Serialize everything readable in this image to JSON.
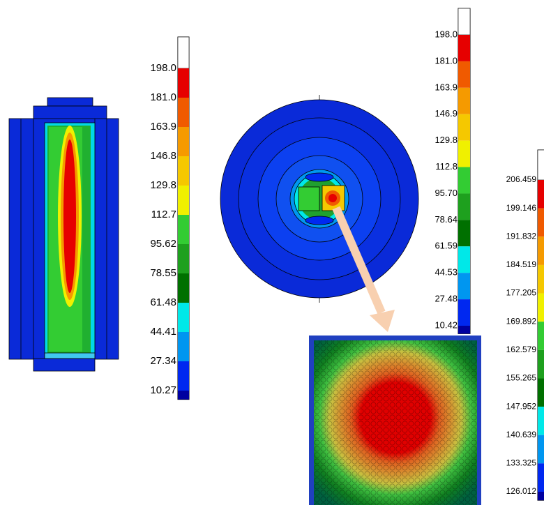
{
  "legend_colors": [
    "#ffffff",
    "#e60000",
    "#f05a00",
    "#f59a00",
    "#f5c800",
    "#f0f000",
    "#33cc33",
    "#1ea01e",
    "#007000",
    "#00e8e8",
    "#0096f0",
    "#0028f0",
    "#0000a0"
  ],
  "legends": [
    {
      "labels": [
        "198.0",
        "181.0",
        "163.9",
        "146.8",
        "129.8",
        "112.7",
        "95.62",
        "78.55",
        "61.48",
        "44.41",
        "27.34",
        "10.27"
      ]
    },
    {
      "labels": [
        "198.0",
        "181.0",
        "163.9",
        "146.9",
        "129.8",
        "112.8",
        "95.70",
        "78.64",
        "61.59",
        "44.53",
        "27.48",
        "10.42"
      ]
    },
    {
      "labels": [
        "206.459",
        "199.146",
        "191.832",
        "184.519",
        "177.205",
        "169.892",
        "162.579",
        "155.265",
        "147.952",
        "140.639",
        "133.325",
        "126.012"
      ]
    }
  ]
}
